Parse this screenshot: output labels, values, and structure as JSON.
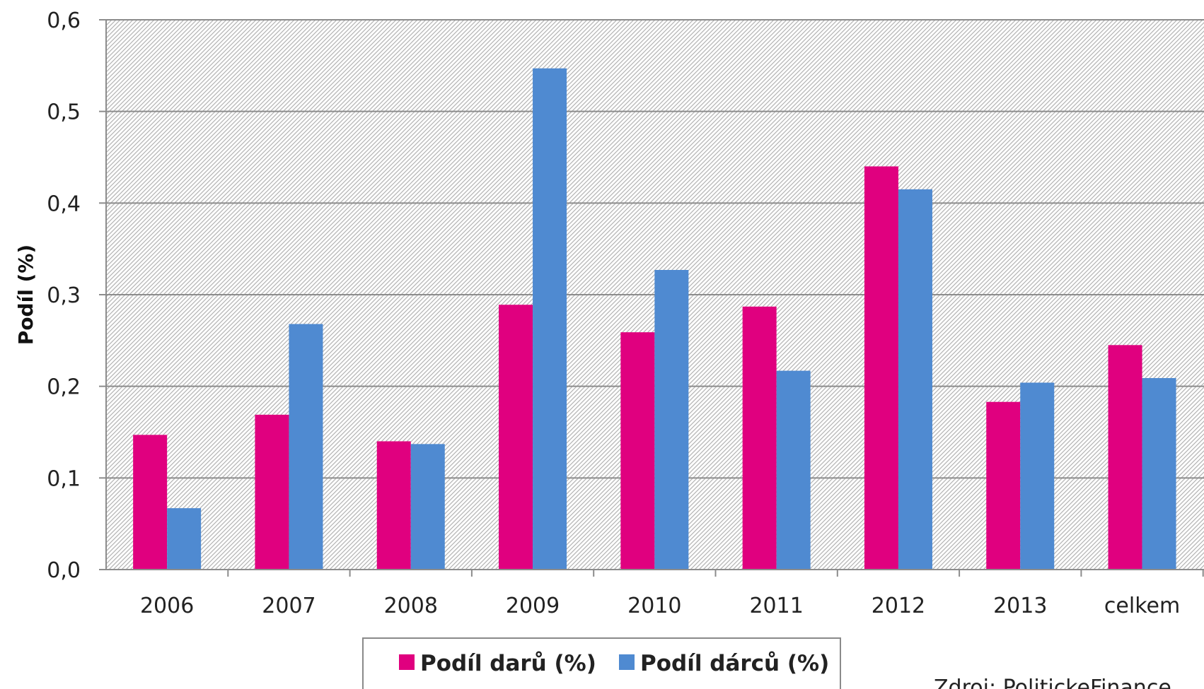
{
  "chart_data": {
    "type": "bar",
    "title": "",
    "xlabel": "",
    "ylabel": "Podíl (%)",
    "categories": [
      "2006",
      "2007",
      "2008",
      "2009",
      "2010",
      "2011",
      "2012",
      "2013",
      "celkem"
    ],
    "series": [
      {
        "name": "Podíl darů (%)",
        "color": "#e0007f",
        "values": [
          0.147,
          0.169,
          0.14,
          0.289,
          0.259,
          0.287,
          0.44,
          0.183,
          0.245
        ]
      },
      {
        "name": "Podíl dárců (%)",
        "color": "#4f8ad1",
        "values": [
          0.067,
          0.268,
          0.137,
          0.547,
          0.327,
          0.217,
          0.415,
          0.204,
          0.209
        ]
      }
    ],
    "ylim": [
      0,
      0.6
    ],
    "yticks": [
      "0,0",
      "0,1",
      "0,2",
      "0,3",
      "0,4",
      "0,5",
      "0,6"
    ],
    "grid": true,
    "legend_position": "bottom",
    "plot_background": "diagonal-hatch",
    "annotation": "Zdroj: PolitickeFinance"
  }
}
